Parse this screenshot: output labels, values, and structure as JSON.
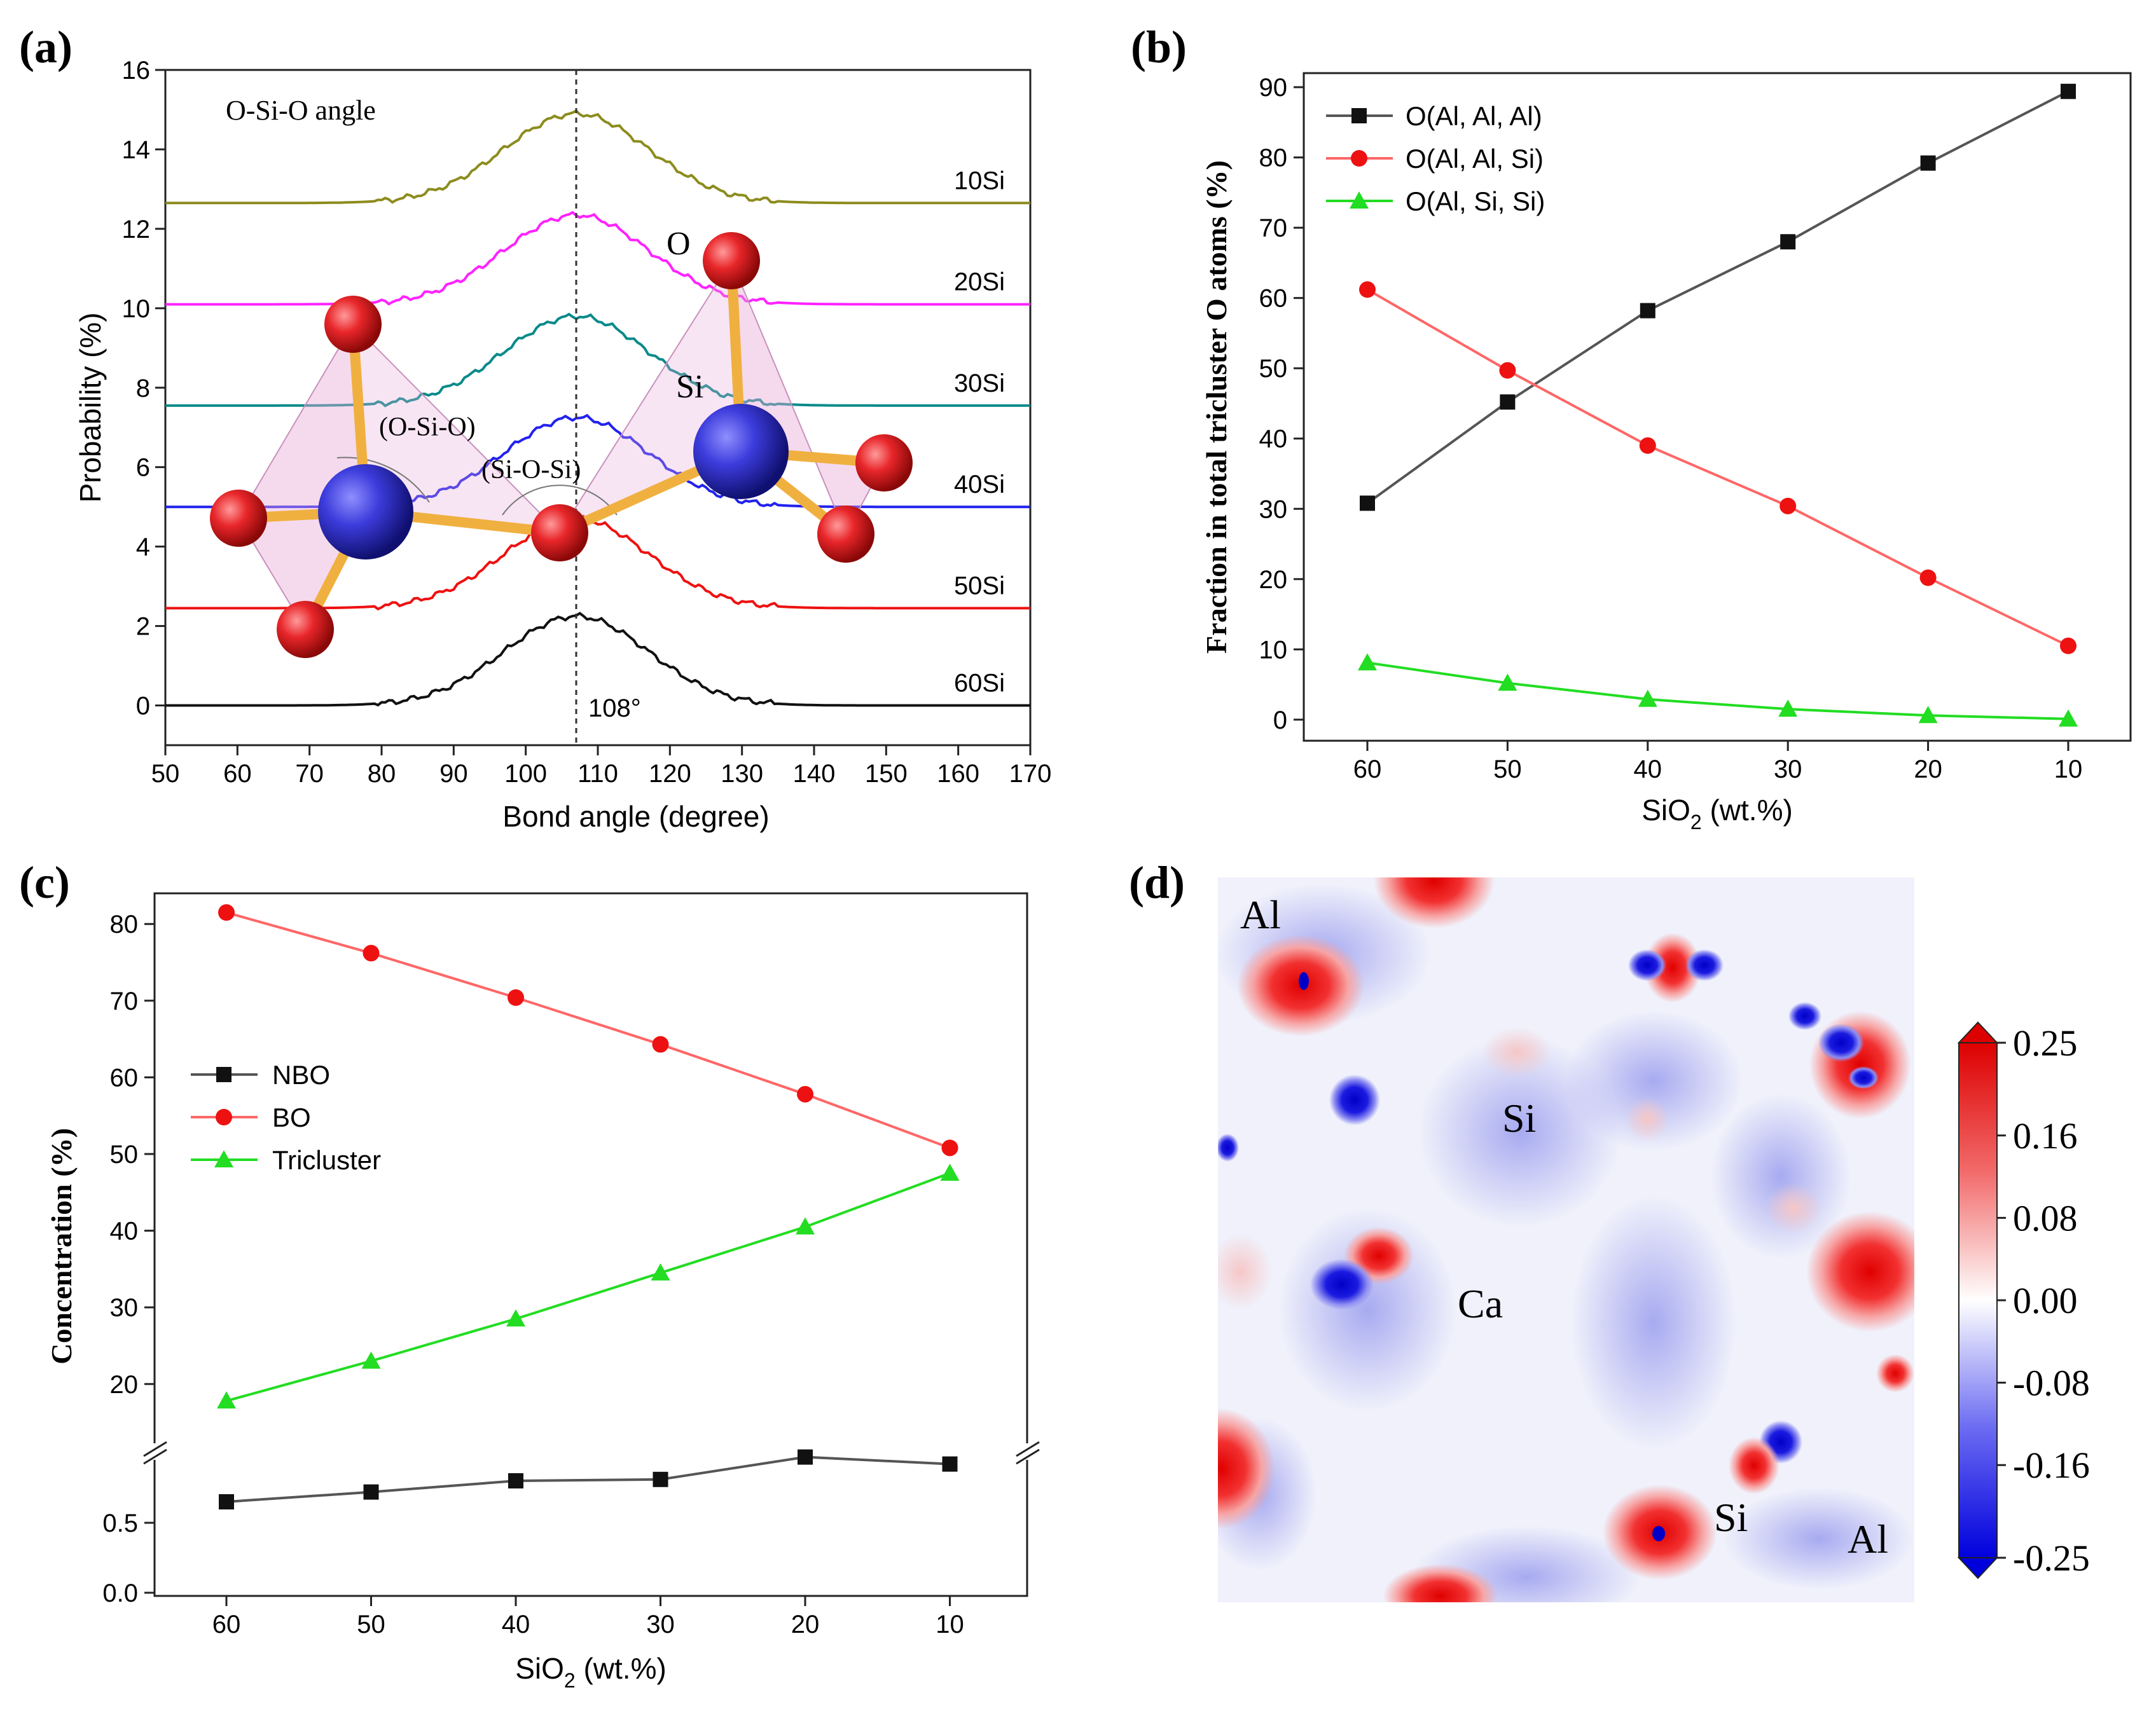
{
  "panels": {
    "a": {
      "label": "(a)",
      "title": "O-Si-O angle",
      "annotation_108": "108°",
      "ref_line_x": 107,
      "molecule_labels": {
        "O": "O",
        "Si": "Si",
        "osio": "(O-Si-O)",
        "siosi": "(Si-O-Si)"
      }
    },
    "b": {
      "label": "(b)"
    },
    "c": {
      "label": "(c)"
    },
    "d": {
      "label": "(d)",
      "atom_labels": {
        "al1": "Al",
        "si1": "Si",
        "ca": "Ca",
        "si2": "Si",
        "al2": "Al"
      }
    }
  },
  "chart_data": [
    {
      "id": "a",
      "type": "line",
      "title": "O-Si-O angle",
      "xlabel": "Bond angle (degree)",
      "ylabel": "Probability (%)",
      "xlim": [
        50,
        170
      ],
      "ylim": [
        -1,
        16
      ],
      "xticks": [
        "50",
        "60",
        "70",
        "80",
        "90",
        "100",
        "110",
        "120",
        "130",
        "140",
        "150",
        "160",
        "170"
      ],
      "yticks": [
        "0",
        "2",
        "4",
        "6",
        "8",
        "10",
        "12",
        "14",
        "16"
      ],
      "series": [
        {
          "name": "10Si",
          "baseline": 12.65,
          "peak": 2.25,
          "center": 107,
          "width": 10,
          "color": "#8c8c1e"
        },
        {
          "name": "20Si",
          "baseline": 10.1,
          "peak": 2.25,
          "center": 107,
          "width": 10,
          "color": "#ff22ff"
        },
        {
          "name": "30Si",
          "baseline": 7.55,
          "peak": 2.25,
          "center": 107,
          "width": 10,
          "color": "#0a8a8a"
        },
        {
          "name": "40Si",
          "baseline": 5.0,
          "peak": 2.25,
          "center": 107,
          "width": 10,
          "color": "#2222ee"
        },
        {
          "name": "50Si",
          "baseline": 2.45,
          "peak": 2.25,
          "center": 107,
          "width": 10,
          "color": "#ee1111"
        },
        {
          "name": "60Si",
          "baseline": 0.0,
          "peak": 2.25,
          "center": 107,
          "width": 10,
          "color": "#111111"
        }
      ]
    },
    {
      "id": "b",
      "type": "line",
      "xlabel": "SiO",
      "xlabel_sub": "2",
      "xlabel_rest": " (wt.%)",
      "ylabel": "Fraction in total tricluster O atoms (%)",
      "categories": [
        "60",
        "50",
        "40",
        "30",
        "20",
        "10"
      ],
      "ylim": [
        -3,
        92
      ],
      "yticks": [
        "0",
        "10",
        "20",
        "30",
        "40",
        "50",
        "60",
        "70",
        "80",
        "90"
      ],
      "series": [
        {
          "name": "O(Al, Al, Al)",
          "marker": "square",
          "color": "#111111",
          "line": "#555555",
          "values": [
            30.8,
            45.2,
            58.2,
            68.0,
            79.2,
            89.4
          ]
        },
        {
          "name": "O(Al, Al, Si)",
          "marker": "circle",
          "color": "#ee1111",
          "line": "#ff6666",
          "values": [
            61.2,
            49.7,
            39.0,
            30.4,
            20.2,
            10.5
          ]
        },
        {
          "name": "O(Al, Si, Si)",
          "marker": "triangle",
          "color": "#22dd22",
          "line": "#22dd22",
          "values": [
            8.1,
            5.2,
            2.9,
            1.5,
            0.6,
            0.1
          ]
        }
      ],
      "legend": "top-left"
    },
    {
      "id": "c",
      "type": "line",
      "xlabel": "SiO",
      "xlabel_sub": "2",
      "xlabel_rest": " (wt.%)",
      "ylabel": "Concentration (%)",
      "categories": [
        "60",
        "50",
        "40",
        "30",
        "20",
        "10"
      ],
      "broken_axis": true,
      "upper_ylim": [
        16,
        84
      ],
      "upper_yticks": [
        "20",
        "30",
        "40",
        "50",
        "60",
        "70",
        "80"
      ],
      "lower_ylim": [
        0,
        1.0
      ],
      "lower_yticks": [
        "0.0",
        "0.5"
      ],
      "series": [
        {
          "name": "NBO",
          "marker": "square",
          "color": "#111111",
          "line": "#555555",
          "segment": "lower",
          "values": [
            0.65,
            0.72,
            0.8,
            0.81,
            0.97,
            0.92
          ]
        },
        {
          "name": "BO",
          "marker": "circle",
          "color": "#ee1111",
          "line": "#ff6666",
          "segment": "upper",
          "values": [
            81.5,
            76.2,
            70.4,
            64.3,
            57.8,
            50.8
          ]
        },
        {
          "name": "Tricluster",
          "marker": "triangle",
          "color": "#22dd22",
          "line": "#22dd22",
          "segment": "upper",
          "values": [
            17.8,
            23.0,
            28.5,
            34.5,
            40.5,
            47.5
          ]
        }
      ],
      "legend": "left"
    },
    {
      "id": "d",
      "type": "heatmap",
      "colorbar": {
        "ticks": [
          "0.25",
          "0.16",
          "0.08",
          "0.00",
          "-0.08",
          "-0.16",
          "-0.25"
        ],
        "min": -0.25,
        "max": 0.25,
        "colors": [
          "#0000dd",
          "#ffffff",
          "#dd0000"
        ]
      }
    }
  ]
}
